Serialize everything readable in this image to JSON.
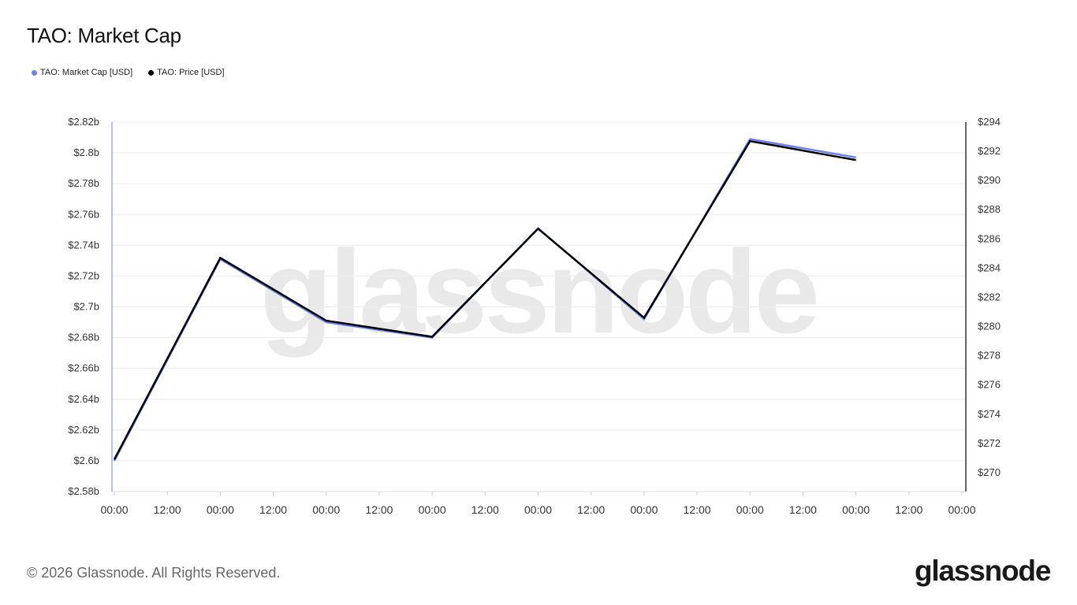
{
  "title": "TAO: Market Cap",
  "legend": [
    {
      "label": "TAO: Market Cap [USD]",
      "color": "#6b83f0"
    },
    {
      "label": "TAO: Price [USD]",
      "color": "#000000"
    }
  ],
  "footer": "© 2026 Glassnode. All Rights Reserved.",
  "logo": "glassnode",
  "watermark": "glassnode",
  "chart_data": {
    "type": "line",
    "x_ticks": [
      "00:00",
      "12:00",
      "00:00",
      "12:00",
      "00:00",
      "12:00",
      "00:00",
      "12:00",
      "00:00",
      "12:00",
      "00:00",
      "12:00",
      "00:00",
      "12:00",
      "00:00",
      "12:00",
      "00:00"
    ],
    "y_left_ticks": [
      "$2.58b",
      "$2.6b",
      "$2.62b",
      "$2.64b",
      "$2.66b",
      "$2.68b",
      "$2.7b",
      "$2.72b",
      "$2.74b",
      "$2.76b",
      "$2.78b",
      "$2.8b",
      "$2.82b"
    ],
    "y_right_ticks": [
      "$270",
      "$272",
      "$274",
      "$276",
      "$278",
      "$280",
      "$282",
      "$284",
      "$286",
      "$288",
      "$290",
      "$292",
      "$294"
    ],
    "ylim_left": [
      2.58,
      2.82
    ],
    "ylim_right": [
      268.7,
      294
    ],
    "x_range": [
      0,
      16
    ],
    "grid": true,
    "series": [
      {
        "name": "TAO: Market Cap [USD]",
        "axis": "left",
        "color": "#6b83f0",
        "x": [
          0,
          2,
          4,
          6,
          8,
          10,
          12,
          14
        ],
        "y": [
          2.6,
          2.731,
          2.69,
          2.68,
          2.751,
          2.692,
          2.809,
          2.797
        ]
      },
      {
        "name": "TAO: Price [USD]",
        "axis": "right",
        "color": "#000000",
        "x": [
          0,
          2,
          4,
          6,
          8,
          10,
          12,
          14
        ],
        "y": [
          270.9,
          284.7,
          280.4,
          279.3,
          286.7,
          280.6,
          292.7,
          291.4
        ]
      }
    ]
  }
}
